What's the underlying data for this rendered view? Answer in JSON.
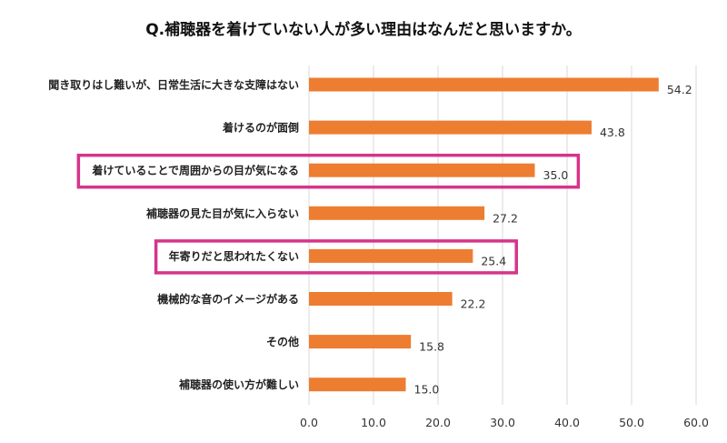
{
  "chart_data": {
    "type": "bar",
    "orientation": "horizontal",
    "title": "Q.補聴器を着けていない人が多い理由はなんだと思いますか。",
    "categories": [
      "聞き取りはし難いが、日常生活に大きな支障はない",
      "着けるのが面倒",
      "着けていることで周囲からの目が気になる",
      "補聴器の見た目が気に入らない",
      "年寄りだと思われたくない",
      "機械的な音のイメージがある",
      "その他",
      "補聴器の使い方が難しい"
    ],
    "values": [
      54.2,
      43.8,
      35.0,
      27.2,
      25.4,
      22.2,
      15.8,
      15.0
    ],
    "value_labels": [
      "54.2",
      "43.8",
      "35.0",
      "27.2",
      "25.4",
      "22.2",
      "15.8",
      "15.0"
    ],
    "xlim": [
      0,
      60
    ],
    "xticks": [
      0,
      10,
      20,
      30,
      40,
      50,
      60
    ],
    "xtick_labels": [
      "0.0",
      "10.0",
      "20.0",
      "30.0",
      "40.0",
      "50.0",
      "60.0"
    ],
    "grid": "vertical",
    "highlighted_categories": [
      "着けていることで周囲からの目が気になる",
      "年寄りだと思われたくない"
    ],
    "colors": {
      "bar": "#ED7D31",
      "highlight_box": "#D6348A",
      "grid": "#D9D9D9"
    }
  }
}
